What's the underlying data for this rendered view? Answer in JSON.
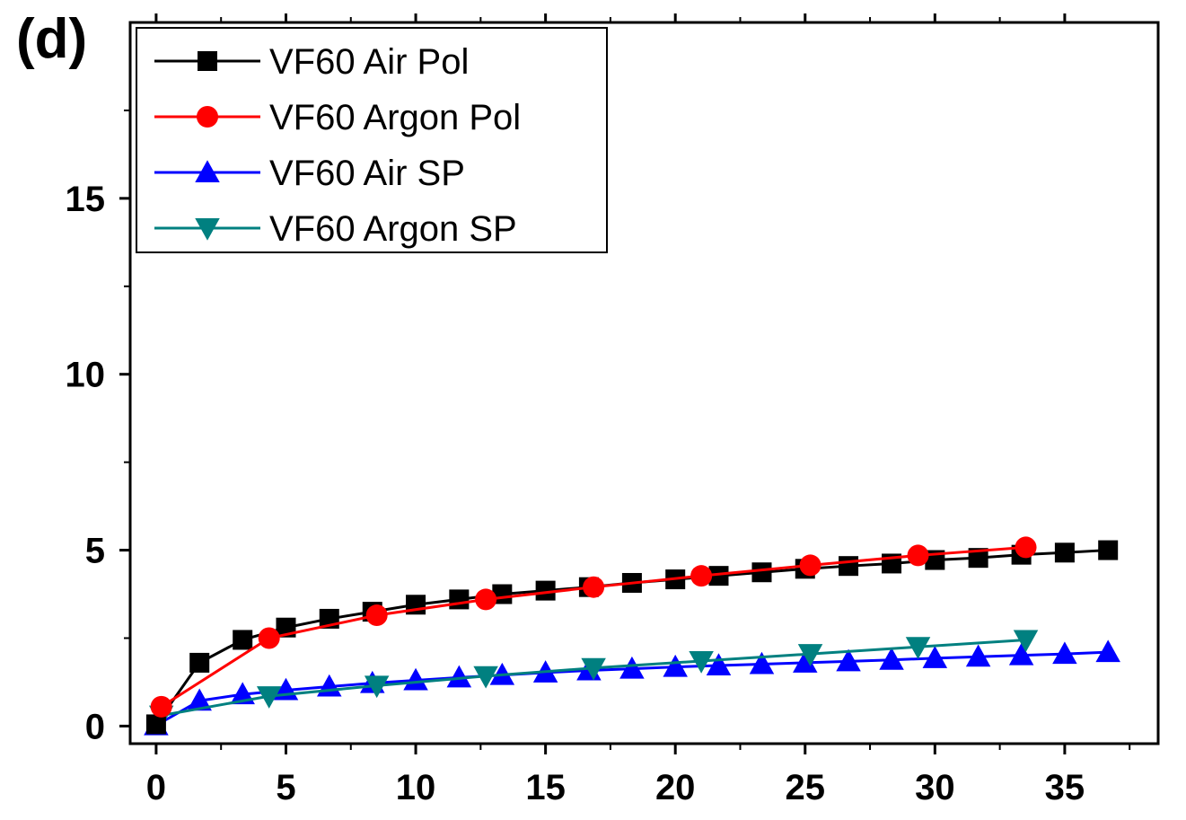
{
  "panel_label": "(d)",
  "chart_data": {
    "type": "line",
    "title": "",
    "xlabel": "",
    "ylabel": "",
    "xlim": [
      -1,
      38.6
    ],
    "ylim": [
      -0.5,
      20
    ],
    "x_ticks": [
      0,
      5,
      10,
      15,
      20,
      25,
      30,
      35
    ],
    "y_ticks": [
      0,
      5,
      10,
      15
    ],
    "legend_position": "top-left",
    "grid": false,
    "series": [
      {
        "name": "VF60 Air Pol",
        "color": "#000000",
        "marker": "square",
        "x": [
          0,
          1.67,
          3.33,
          5,
          6.67,
          8.33,
          10,
          11.67,
          13.33,
          15,
          16.67,
          18.33,
          20,
          21.67,
          23.33,
          25,
          26.67,
          28.33,
          30,
          31.67,
          33.33,
          35,
          36.67
        ],
        "y": [
          0.05,
          1.8,
          2.45,
          2.8,
          3.05,
          3.25,
          3.45,
          3.6,
          3.75,
          3.85,
          3.95,
          4.07,
          4.17,
          4.27,
          4.37,
          4.47,
          4.55,
          4.62,
          4.72,
          4.78,
          4.87,
          4.93,
          5.0
        ]
      },
      {
        "name": "VF60 Argon Pol",
        "color": "#ff0000",
        "marker": "circle",
        "x": [
          0.2,
          4.35,
          8.5,
          12.7,
          16.85,
          21,
          25.2,
          29.35,
          33.5
        ],
        "y": [
          0.55,
          2.5,
          3.15,
          3.6,
          3.95,
          4.27,
          4.57,
          4.85,
          5.08
        ]
      },
      {
        "name": "VF60 Air SP",
        "color": "#0000ff",
        "marker": "triangle-up",
        "x": [
          0,
          1.67,
          3.33,
          5,
          6.67,
          8.33,
          10,
          11.67,
          13.33,
          15,
          16.67,
          18.33,
          20,
          21.67,
          23.33,
          25,
          26.67,
          28.33,
          30,
          31.67,
          33.33,
          35,
          36.67
        ],
        "y": [
          0.02,
          0.72,
          0.9,
          1.02,
          1.12,
          1.22,
          1.3,
          1.38,
          1.45,
          1.52,
          1.58,
          1.63,
          1.68,
          1.72,
          1.76,
          1.8,
          1.84,
          1.88,
          1.93,
          1.97,
          2.01,
          2.05,
          2.1
        ]
      },
      {
        "name": "VF60 Argon SP",
        "color": "#008080",
        "marker": "triangle-down",
        "x": [
          0.2,
          4.35,
          8.5,
          12.7,
          16.85,
          21,
          25.2,
          29.35,
          33.5
        ],
        "y": [
          0.3,
          0.85,
          1.15,
          1.42,
          1.65,
          1.85,
          2.05,
          2.25,
          2.45
        ]
      }
    ]
  }
}
